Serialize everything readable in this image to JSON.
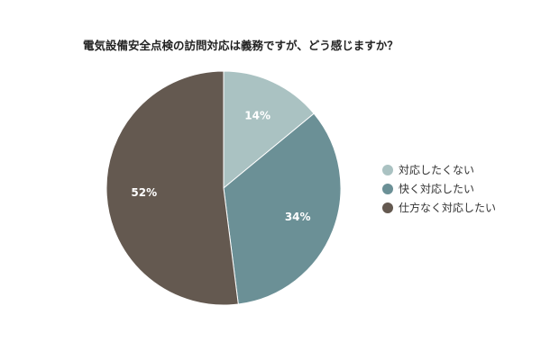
{
  "chart_data": {
    "type": "pie",
    "title": "電気設備安全点検の訪問対応は義務ですが、どう感じますか？",
    "legend_position": "right",
    "slices": [
      {
        "label": "対応したくない",
        "value": 14,
        "value_label": "14%",
        "color": "#aac2c2"
      },
      {
        "label": "快く対応したい",
        "value": 34,
        "value_label": "34%",
        "color": "#6b9096"
      },
      {
        "label": "仕方なく対応したい",
        "value": 52,
        "value_label": "52%",
        "color": "#645950"
      }
    ]
  }
}
